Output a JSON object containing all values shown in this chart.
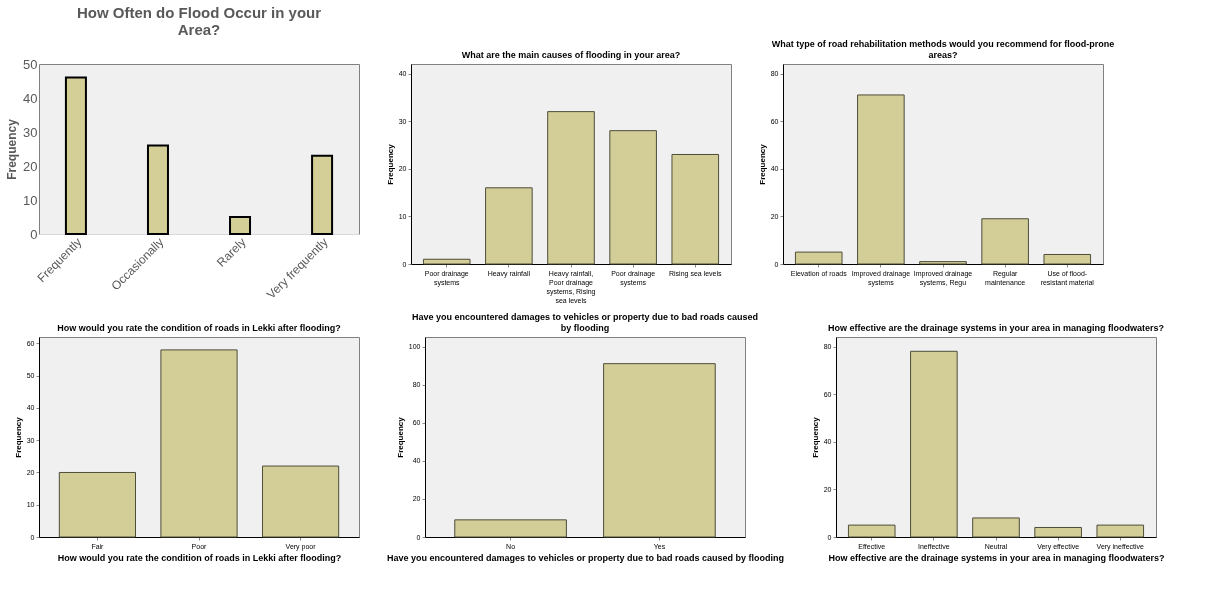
{
  "chart_data": [
    {
      "type": "bar",
      "title": "How Often do Flood Occur in your Area?",
      "ylabel": "Frequency",
      "categories": [
        "Frequently",
        "Occasionally",
        "Rarely",
        "Very frequently"
      ],
      "values": [
        46,
        26,
        5,
        23
      ],
      "color": "#d3cf96",
      "ylim": [
        0,
        50
      ],
      "yticks": [
        0,
        10,
        20,
        30,
        40,
        50
      ]
    },
    {
      "type": "bar",
      "title": "What are the main causes of flooding in your area?",
      "ylabel": "Frequency",
      "categories": [
        "Poor drainage systems",
        "Heavy rainfall",
        "Heavy rainfall, Poor drainage systems, Rising sea levels",
        "Poor drainage systems",
        "Rising sea levels"
      ],
      "values": [
        1,
        16,
        32,
        28,
        23
      ],
      "color": "#d3ce97",
      "ylim": [
        0,
        42
      ],
      "yticks": [
        0,
        10,
        20,
        30,
        40
      ]
    },
    {
      "type": "bar",
      "title": "What type of road rehabilitation methods would you recommend for flood-prone areas?",
      "ylabel": "Frequency",
      "categories": [
        "Elevation of roads",
        "Improved drainage systems",
        "Improved drainage systems, Regu",
        "Regular maintenance",
        "Use of flood-resistant material"
      ],
      "values": [
        5,
        71,
        1,
        19,
        4
      ],
      "color": "#d3ce97",
      "ylim": [
        0,
        84
      ],
      "yticks": [
        0,
        20,
        40,
        60,
        80
      ]
    },
    {
      "type": "bar",
      "title": "How would you rate the condition of roads in Lekki after flooding?",
      "xlabel": "How would you rate the condition of roads in Lekki after flooding?",
      "ylabel": "Frequency",
      "categories": [
        "Fair",
        "Poor",
        "Very poor"
      ],
      "values": [
        20,
        58,
        22
      ],
      "color": "#d3ce97",
      "ylim": [
        0,
        62
      ],
      "yticks": [
        0,
        10,
        20,
        30,
        40,
        50,
        60
      ]
    },
    {
      "type": "bar",
      "title": "Have you encountered damages to vehicles or property due to bad roads caused by flooding",
      "xlabel": "Have you encountered damages to vehicles or property due to bad roads caused by flooding",
      "ylabel": "Frequency",
      "categories": [
        "No",
        "Yes"
      ],
      "values": [
        9,
        91
      ],
      "color": "#d3ce97",
      "ylim": [
        0,
        105
      ],
      "yticks": [
        0,
        20,
        40,
        60,
        80,
        100
      ]
    },
    {
      "type": "bar",
      "title": "How effective are the drainage systems in your area in managing floodwaters?",
      "xlabel": "How effective are the drainage systems in your area in managing floodwaters?",
      "ylabel": "Frequency",
      "categories": [
        "Effective",
        "Ineffective",
        "Neutral",
        "Very effective",
        "Very ineffective"
      ],
      "values": [
        5,
        78,
        8,
        4,
        5
      ],
      "color": "#d3ce97",
      "ylim": [
        0,
        84
      ],
      "yticks": [
        0,
        20,
        40,
        60,
        80
      ]
    }
  ]
}
